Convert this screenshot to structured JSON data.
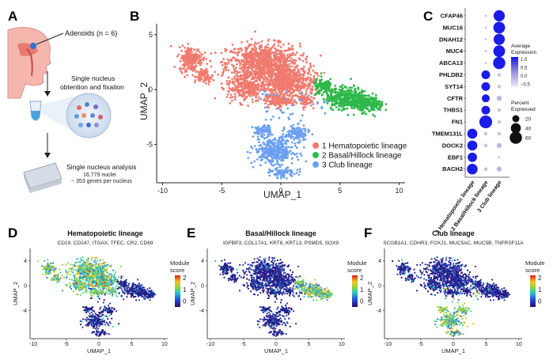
{
  "panels": {
    "A": {
      "label": "A",
      "sample_label": "Adenoids (n = 6)",
      "step1": [
        "Single nucleus",
        "obtention and fixation"
      ],
      "step2_title": "Single nucleus analysis",
      "step2_nuclei": "16,779 nuclei",
      "step2_genes": "~ 353 genes per nucleus"
    },
    "B": {
      "label": "B"
    },
    "C": {
      "label": "C"
    },
    "D": {
      "label": "D"
    },
    "E": {
      "label": "E"
    },
    "F": {
      "label": "F"
    }
  },
  "colors": {
    "hematopoietic": "#f07a6e",
    "basal": "#2fb84a",
    "club": "#6a9ff0",
    "dot_high": "#1c1ce8",
    "dot_low": "#c7c1e6"
  },
  "chart_data": [
    {
      "id": "B",
      "type": "scatter",
      "title": "",
      "xlabel": "UMAP_1",
      "ylabel": "UMAP_2",
      "xlim": [
        -10.5,
        10.5
      ],
      "ylim": [
        -8.5,
        6
      ],
      "xticks": [
        -10,
        -5,
        0,
        5,
        10
      ],
      "yticks": [
        5,
        0,
        -5
      ],
      "legend": [
        "1 Hematopoietic lineage",
        "2 Basal/Hillock lineage",
        "3 Club lineage"
      ],
      "legend_placement": "bottom-right",
      "clusters": [
        {
          "name": "1 Hematopoietic lineage",
          "centers": [
            [
              -1.5,
              1.8
            ],
            [
              -7.5,
              3.0
            ],
            [
              -0.5,
              -1.0
            ],
            [
              1.5,
              -1.2
            ]
          ],
          "approx_extent": "x -8.5 to 3, y -3 to 5"
        },
        {
          "name": "2 Basal/Hillock lineage",
          "centers": [
            [
              6.0,
              -1.0
            ]
          ],
          "approx_extent": "x 3 to 9, y -3 to 1.5"
        },
        {
          "name": "3 Club lineage",
          "centers": [
            [
              -0.5,
              -5.5
            ],
            [
              1.5,
              -3.5
            ]
          ],
          "approx_extent": "x -3 to 3, y -8 to -3"
        }
      ]
    },
    {
      "id": "C",
      "type": "dot",
      "genes": [
        "CFAP46",
        "MUC16",
        "DNAH12",
        "MUC4",
        "ABCA13",
        "PHLDB2",
        "SYT14",
        "CFTR",
        "THBS1",
        "FN1",
        "TMEM131L",
        "DOCK2",
        "EBF1",
        "BACH2"
      ],
      "groups": [
        "1 Hematopoietic lineage",
        "2 Basal/Hillock lineage",
        "3 Club lineage"
      ],
      "percent_expressed": [
        [
          0,
          2,
          50
        ],
        [
          0,
          2,
          55
        ],
        [
          0,
          2,
          50
        ],
        [
          0,
          2,
          55
        ],
        [
          0,
          2,
          60
        ],
        [
          0,
          30,
          5
        ],
        [
          0,
          30,
          5
        ],
        [
          0,
          25,
          10
        ],
        [
          0,
          30,
          5
        ],
        [
          0,
          65,
          5
        ],
        [
          40,
          5,
          5
        ],
        [
          40,
          5,
          10
        ],
        [
          35,
          0,
          2
        ],
        [
          45,
          5,
          10
        ]
      ],
      "average_expression": [
        [
          -0.5,
          -0.5,
          1.0
        ],
        [
          -0.5,
          -0.5,
          1.0
        ],
        [
          -0.5,
          -0.5,
          1.0
        ],
        [
          -0.5,
          -0.5,
          1.0
        ],
        [
          -0.5,
          -0.5,
          1.0
        ],
        [
          -0.5,
          1.0,
          -0.5
        ],
        [
          -0.5,
          1.0,
          -0.5
        ],
        [
          -0.5,
          1.0,
          -0.4
        ],
        [
          -0.5,
          1.0,
          -0.5
        ],
        [
          -0.5,
          1.0,
          -0.5
        ],
        [
          1.0,
          -0.5,
          -0.5
        ],
        [
          1.0,
          -0.5,
          -0.4
        ],
        [
          1.0,
          -0.5,
          -0.5
        ],
        [
          1.0,
          -0.5,
          -0.4
        ]
      ],
      "color_legend_title": [
        "Average",
        "Expression"
      ],
      "color_ticks": [
        "1.0",
        "0.5",
        "0.0",
        "−0.5"
      ],
      "size_legend_title": [
        "Percent",
        "Expressed"
      ],
      "size_legend_values": [
        20,
        40,
        60
      ]
    },
    {
      "id": "D",
      "type": "scatter",
      "title": "Hematopoietic lineage",
      "subtitle": "CD19, CD247, ITGAX, TFEC, CR2, CD69",
      "xlabel": "UMAP_1",
      "ylabel": "UMAP_2",
      "xticks": [
        -10,
        -5,
        0,
        5,
        10
      ],
      "yticks": [
        4,
        0,
        -4
      ],
      "colorbar_title": [
        "Module",
        "score"
      ],
      "colorbar_ticks": [
        2,
        1,
        0
      ],
      "colorbar_range": [
        -0.5,
        2.2
      ],
      "high_region": "hematopoietic"
    },
    {
      "id": "E",
      "type": "scatter",
      "title": "Basal/Hillock lineage",
      "subtitle": "IGFBP3, COL17A1, KRT8, KRT13, PSMD5, SOX9",
      "xlabel": "UMAP_1",
      "ylabel": "UMAP_2",
      "xticks": [
        -10,
        -5,
        0,
        5,
        10
      ],
      "yticks": [
        4,
        0,
        -4
      ],
      "colorbar_title": [
        "Module",
        "score"
      ],
      "colorbar_ticks": [
        2,
        1,
        0
      ],
      "colorbar_range": [
        -0.5,
        2.2
      ],
      "high_region": "basal"
    },
    {
      "id": "F",
      "type": "scatter",
      "title": "Club lineage",
      "subtitle": "SCGB1A1, CDHR3, FOXJ1, MUC5AC, MUC5B, TNFRSF11A",
      "xlabel": "UMAP_1",
      "ylabel": "UMAP_2",
      "xticks": [
        -10,
        -5,
        0,
        5,
        10
      ],
      "yticks": [
        4,
        0,
        -4
      ],
      "colorbar_title": [
        "Module",
        "score"
      ],
      "colorbar_ticks": [
        2,
        1,
        0
      ],
      "colorbar_range": [
        -0.5,
        2.2
      ],
      "high_region": "club"
    }
  ]
}
